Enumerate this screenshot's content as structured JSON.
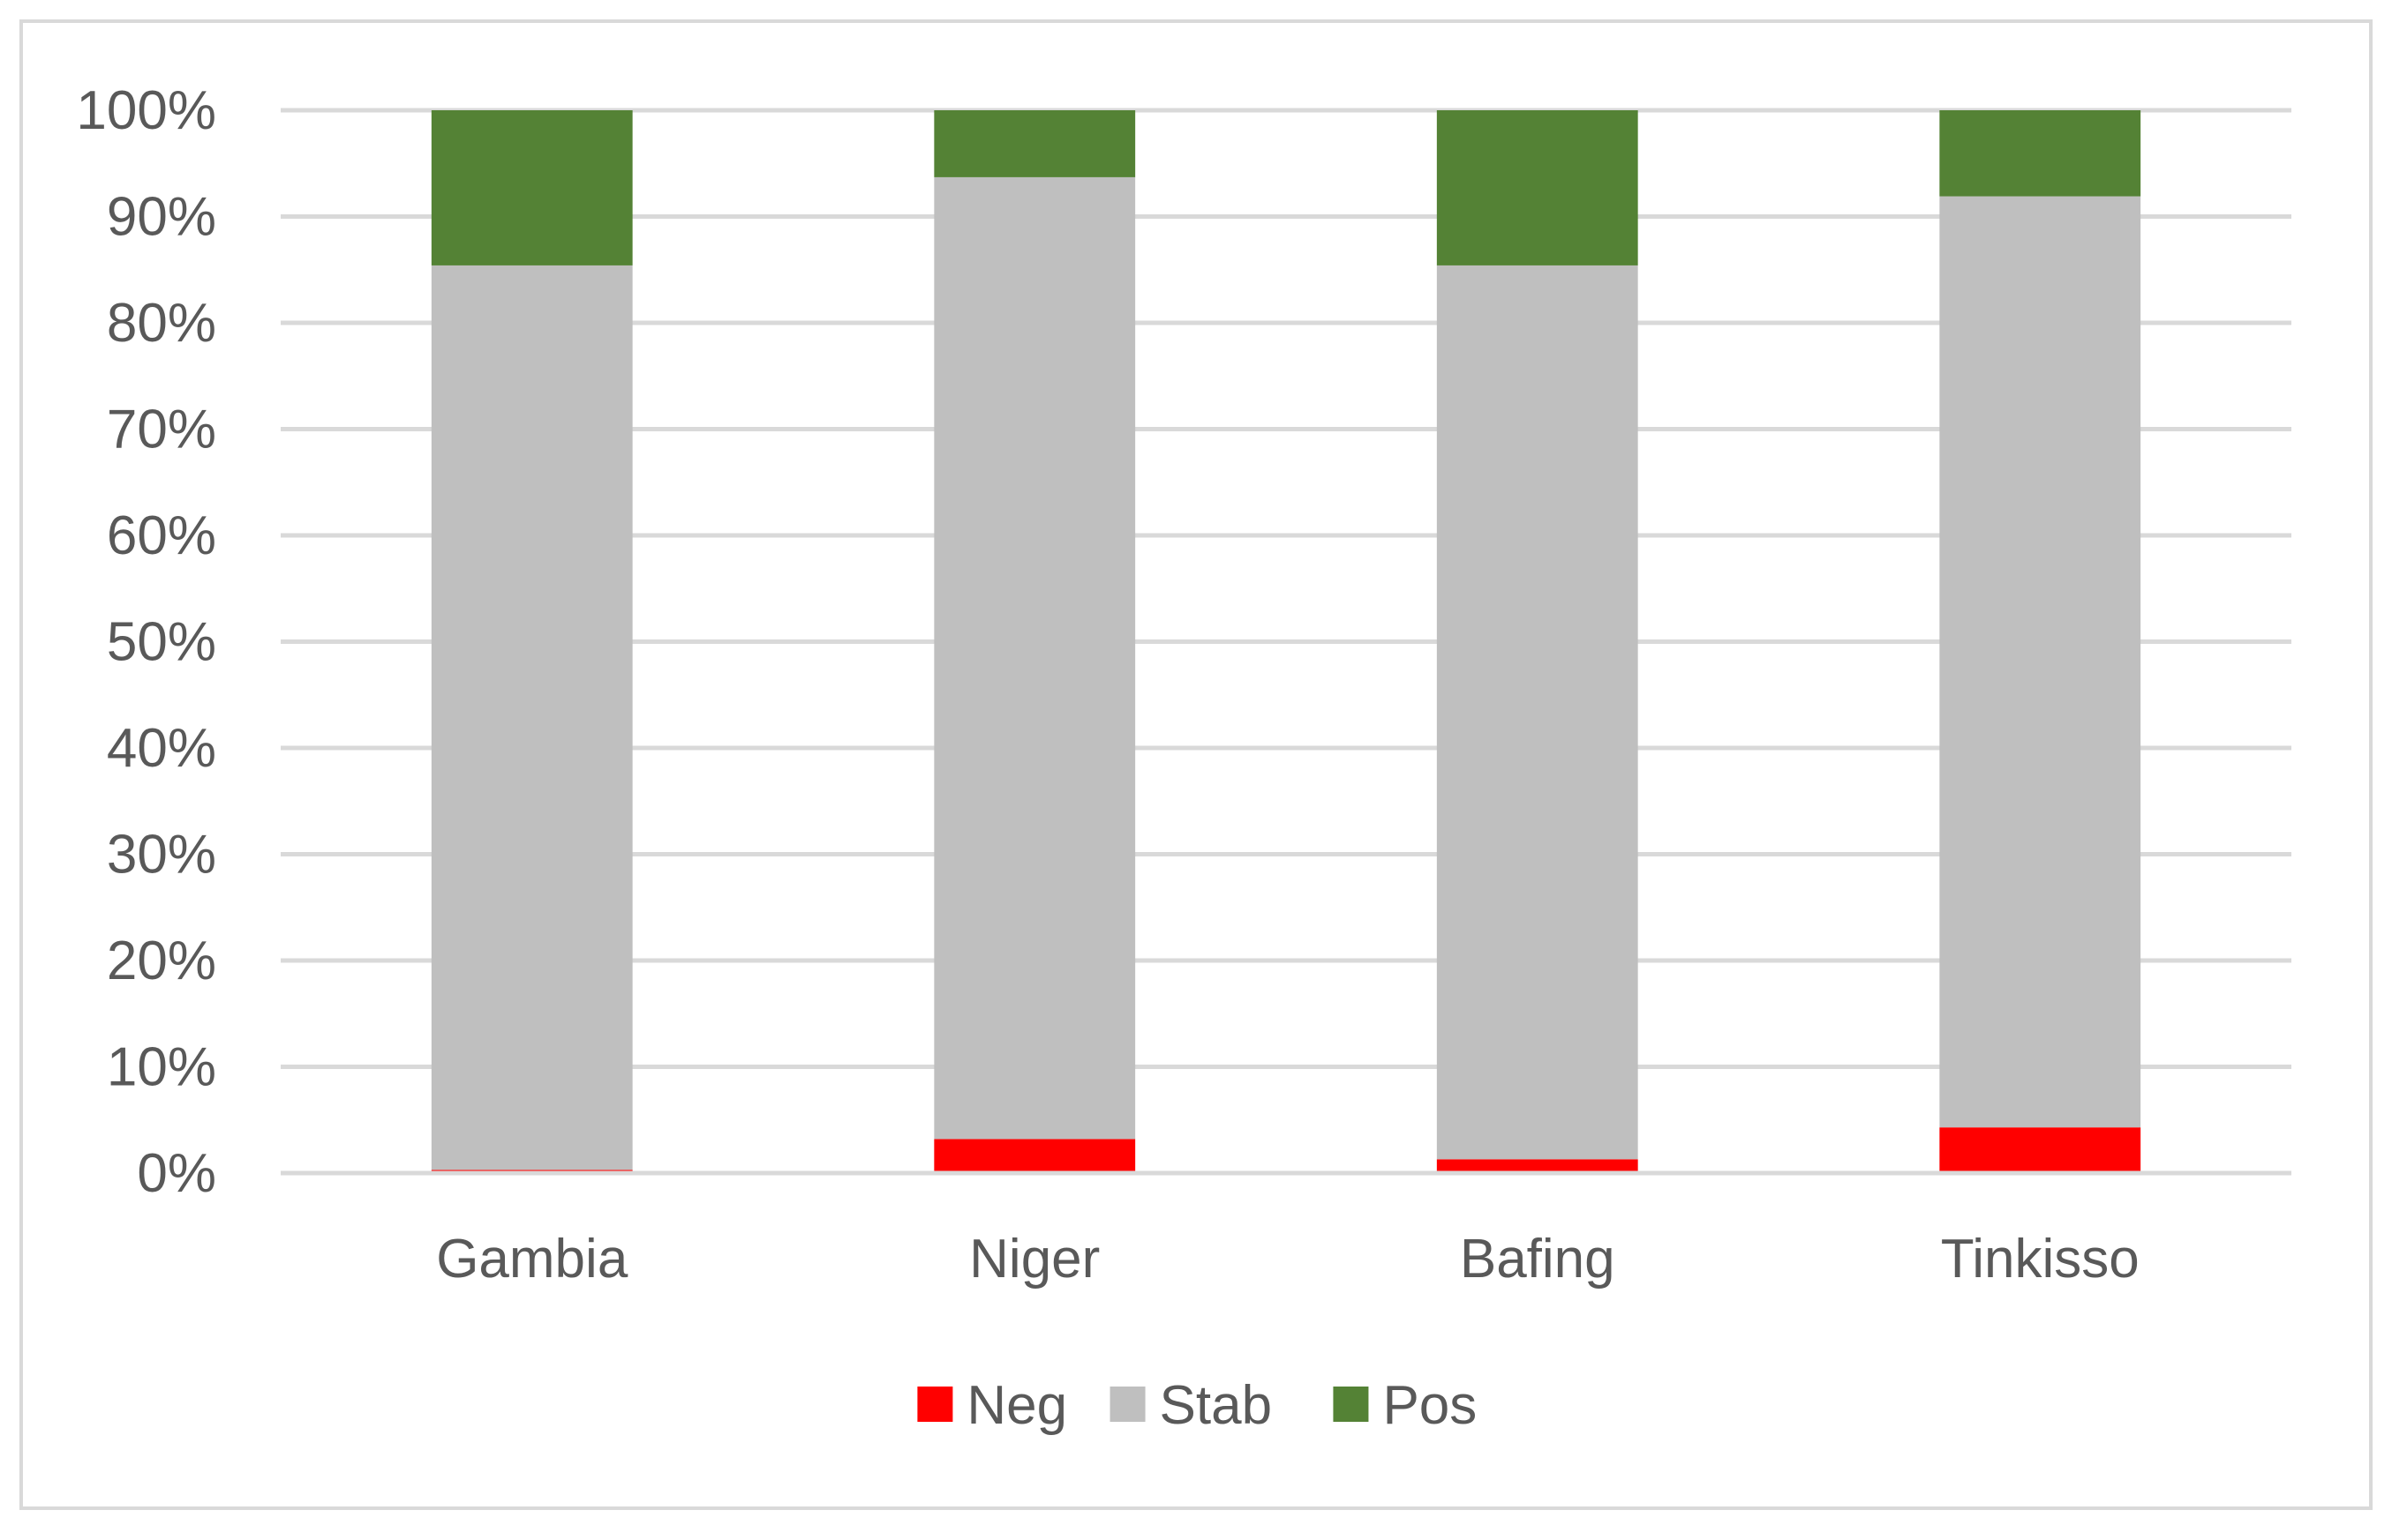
{
  "chart_data": {
    "type": "bar",
    "stacked": true,
    "percent_stacked": true,
    "categories": [
      "Gambia",
      "Niger",
      "Bafing",
      "Tinkisso"
    ],
    "series": [
      {
        "name": "Neg",
        "color": "#ff0000",
        "values": [
          0.3,
          3.2,
          1.3,
          4.3
        ]
      },
      {
        "name": "Stab",
        "color": "#bfbfbf",
        "values": [
          85.1,
          90.5,
          84.1,
          87.6
        ]
      },
      {
        "name": "Pos",
        "color": "#548235",
        "values": [
          14.6,
          6.3,
          14.6,
          8.1
        ]
      }
    ],
    "y_ticks": [
      "0%",
      "10%",
      "20%",
      "30%",
      "40%",
      "50%",
      "60%",
      "70%",
      "80%",
      "90%",
      "100%"
    ],
    "ylim": [
      0,
      100
    ],
    "grid": true,
    "legend_position": "bottom",
    "title": "",
    "xlabel": "",
    "ylabel": ""
  }
}
